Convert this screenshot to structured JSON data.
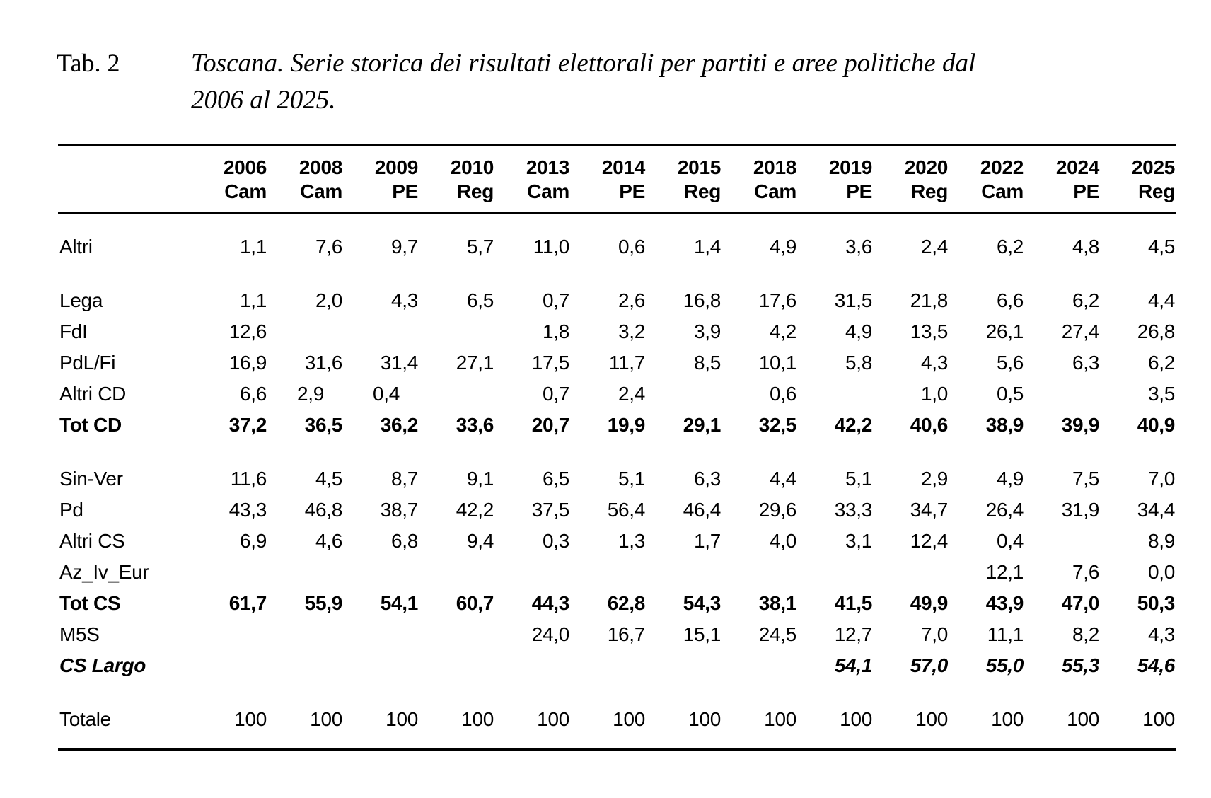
{
  "page": {
    "background_color": "#ffffff",
    "text_color": "#000000"
  },
  "title": {
    "label": "Tab. 2",
    "caption_line1": "Toscana. Serie storica dei risultati elettorali per partiti e aree politiche dal",
    "caption_line2": "2006 al 2025."
  },
  "table": {
    "header": {
      "years": [
        "2006",
        "2008",
        "2009",
        "2010",
        "2013",
        "2014",
        "2015",
        "2018",
        "2019",
        "2020",
        "2022",
        "2024",
        "2025"
      ],
      "elections": [
        "Cam",
        "Cam",
        "PE",
        "Reg",
        "Cam",
        "PE",
        "Reg",
        "Cam",
        "PE",
        "Reg",
        "Cam",
        "PE",
        "Reg"
      ]
    },
    "rows": [
      {
        "label": "Altri",
        "style": "normal",
        "gap_before": true,
        "values": [
          "1,1",
          "7,6",
          "9,7",
          "5,7",
          "11,0",
          "0,6",
          "1,4",
          "4,9",
          "3,6",
          "2,4",
          "6,2",
          "4,8",
          "4,5"
        ]
      },
      {
        "label": "Lega",
        "style": "normal",
        "gap_before": true,
        "values": [
          "1,1",
          "2,0",
          "4,3",
          "6,5",
          "0,7",
          "2,6",
          "16,8",
          "17,6",
          "31,5",
          "21,8",
          "6,6",
          "6,2",
          "4,4"
        ]
      },
      {
        "label": "FdI",
        "style": "normal",
        "gap_before": false,
        "values": [
          "12,6",
          "",
          "",
          "",
          "1,8",
          "3,2",
          "3,9",
          "4,2",
          "4,9",
          "13,5",
          "26,1",
          "27,4",
          "26,8"
        ]
      },
      {
        "label": "PdL/Fi",
        "style": "normal",
        "gap_before": false,
        "values": [
          "16,9",
          "31,6",
          "31,4",
          "27,1",
          "17,5",
          "11,7",
          "8,5",
          "10,1",
          "5,8",
          "4,3",
          "5,6",
          "6,3",
          "6,2"
        ]
      },
      {
        "label": "Altri CD",
        "style": "normal",
        "gap_before": false,
        "values": [
          "6,6",
          "2,9",
          "0,4",
          "",
          "0,7",
          "2,4",
          "",
          "0,6",
          "",
          "1,0",
          "0,5",
          "",
          "3,5"
        ]
      },
      {
        "label": "Tot CD",
        "style": "bold",
        "gap_before": false,
        "values": [
          "37,2",
          "36,5",
          "36,2",
          "33,6",
          "20,7",
          "19,9",
          "29,1",
          "32,5",
          "42,2",
          "40,6",
          "38,9",
          "39,9",
          "40,9"
        ]
      },
      {
        "label": "Sin-Ver",
        "style": "normal",
        "gap_before": true,
        "values": [
          "11,6",
          "4,5",
          "8,7",
          "9,1",
          "6,5",
          "5,1",
          "6,3",
          "4,4",
          "5,1",
          "2,9",
          "4,9",
          "7,5",
          "7,0"
        ]
      },
      {
        "label": "Pd",
        "style": "normal",
        "gap_before": false,
        "values": [
          "43,3",
          "46,8",
          "38,7",
          "42,2",
          "37,5",
          "56,4",
          "46,4",
          "29,6",
          "33,3",
          "34,7",
          "26,4",
          "31,9",
          "34,4"
        ]
      },
      {
        "label": "Altri CS",
        "style": "normal",
        "gap_before": false,
        "values": [
          "6,9",
          "4,6",
          "6,8",
          "9,4",
          "0,3",
          "1,3",
          "1,7",
          "4,0",
          "3,1",
          "12,4",
          "0,4",
          "",
          "8,9"
        ]
      },
      {
        "label": "Az_Iv_Eur",
        "style": "normal",
        "gap_before": false,
        "values": [
          "",
          "",
          "",
          "",
          "",
          "",
          "",
          "",
          "",
          "",
          "12,1",
          "7,6",
          "0,0"
        ]
      },
      {
        "label": "Tot CS",
        "style": "bold",
        "gap_before": false,
        "values": [
          "61,7",
          "55,9",
          "54,1",
          "60,7",
          "44,3",
          "62,8",
          "54,3",
          "38,1",
          "41,5",
          "49,9",
          "43,9",
          "47,0",
          "50,3"
        ]
      },
      {
        "label": "M5S",
        "style": "normal",
        "gap_before": false,
        "values": [
          "",
          "",
          "",
          "",
          "24,0",
          "16,7",
          "15,1",
          "24,5",
          "12,7",
          "7,0",
          "11,1",
          "8,2",
          "4,3"
        ]
      },
      {
        "label": "CS Largo",
        "style": "bold-italic",
        "gap_before": false,
        "values": [
          "",
          "",
          "",
          "",
          "",
          "",
          "",
          "",
          "54,1",
          "57,0",
          "55,0",
          "55,3",
          "54,6"
        ]
      },
      {
        "label": "Totale",
        "style": "normal",
        "gap_before": true,
        "values": [
          "100",
          "100",
          "100",
          "100",
          "100",
          "100",
          "100",
          "100",
          "100",
          "100",
          "100",
          "100",
          "100"
        ]
      }
    ]
  }
}
